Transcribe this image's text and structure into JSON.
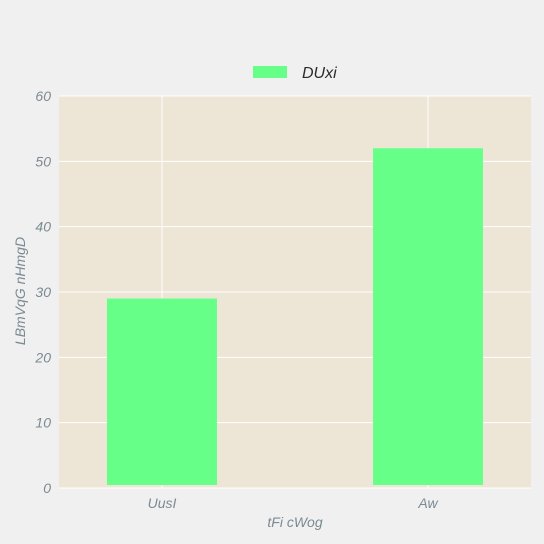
{
  "chart_data": {
    "type": "bar",
    "title": "",
    "categories": [
      "UusI",
      "Aw"
    ],
    "series": [
      {
        "name": "DUxi",
        "values": [
          29,
          52
        ]
      }
    ],
    "xlabel": "tFi cWog",
    "ylabel": "LBmVqG nHmgD",
    "ylim": [
      0,
      60
    ],
    "yticks": [
      0,
      10,
      20,
      30,
      40,
      50,
      60
    ],
    "grid": true,
    "legend_position": "top-center",
    "colors": {
      "bar": "#66ff88",
      "plot_background": "#ede6d6",
      "page_background": "#f0f0f0",
      "grid": "#ffffff",
      "text": "#7b8a93"
    }
  }
}
